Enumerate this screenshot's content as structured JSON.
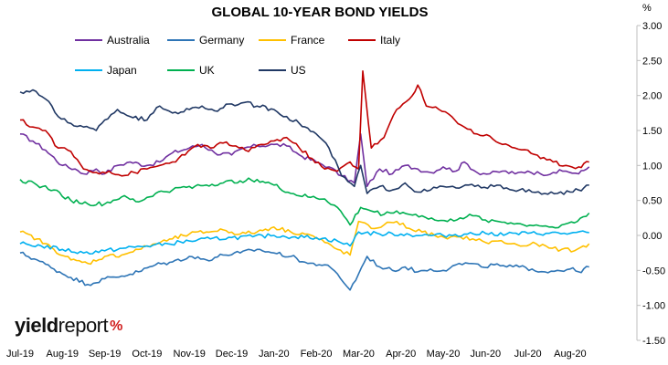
{
  "chart_data": {
    "type": "line",
    "title": "GLOBAL 10-YEAR BOND YIELDS",
    "unit": "%",
    "xlabel": "",
    "ylabel": "",
    "x_tick_labels": [
      "Jul-19",
      "Aug-19",
      "Sep-19",
      "Oct-19",
      "Nov-19",
      "Dec-19",
      "Jan-20",
      "Feb-20",
      "Mar-20",
      "Apr-20",
      "May-20",
      "Jun-20",
      "Jul-20",
      "Aug-20"
    ],
    "y_ticks": [
      "3.00",
      "2.50",
      "2.00",
      "1.50",
      "1.00",
      "0.50",
      "0.00",
      "-0.50",
      "-1.00",
      "-1.50"
    ],
    "ylim": [
      -1.5,
      3.0
    ],
    "grid": false,
    "legend_position": "top",
    "series": [
      {
        "name": "Australia",
        "color": "#7030A0",
        "points": [
          [
            0,
            1.45
          ],
          [
            0.3,
            1.35
          ],
          [
            0.6,
            1.22
          ],
          [
            1.0,
            1.0
          ],
          [
            1.3,
            0.95
          ],
          [
            1.5,
            0.88
          ],
          [
            1.8,
            0.95
          ],
          [
            2.0,
            0.88
          ],
          [
            2.3,
            1.0
          ],
          [
            2.6,
            1.05
          ],
          [
            3.0,
            1.0
          ],
          [
            3.3,
            1.05
          ],
          [
            3.6,
            1.18
          ],
          [
            4.0,
            1.25
          ],
          [
            4.3,
            1.3
          ],
          [
            4.6,
            1.18
          ],
          [
            5.0,
            1.15
          ],
          [
            5.3,
            1.25
          ],
          [
            5.6,
            1.28
          ],
          [
            6.0,
            1.3
          ],
          [
            6.3,
            1.28
          ],
          [
            6.6,
            1.15
          ],
          [
            7.0,
            1.05
          ],
          [
            7.3,
            0.98
          ],
          [
            7.6,
            0.85
          ],
          [
            7.9,
            0.75
          ],
          [
            8.05,
            1.45
          ],
          [
            8.2,
            0.7
          ],
          [
            8.5,
            0.95
          ],
          [
            8.8,
            0.88
          ],
          [
            9.1,
            1.0
          ],
          [
            9.4,
            0.95
          ],
          [
            9.7,
            0.9
          ],
          [
            10.0,
            0.98
          ],
          [
            10.3,
            0.92
          ],
          [
            10.5,
            1.05
          ],
          [
            10.8,
            0.9
          ],
          [
            11.1,
            0.88
          ],
          [
            11.4,
            0.92
          ],
          [
            11.7,
            0.88
          ],
          [
            12.0,
            0.92
          ],
          [
            12.3,
            0.88
          ],
          [
            12.6,
            0.9
          ],
          [
            12.9,
            0.92
          ],
          [
            13.2,
            0.88
          ],
          [
            13.45,
            0.98
          ]
        ]
      },
      {
        "name": "Germany",
        "color": "#2E75B6",
        "points": [
          [
            0,
            -0.25
          ],
          [
            0.4,
            -0.35
          ],
          [
            0.8,
            -0.48
          ],
          [
            1.2,
            -0.6
          ],
          [
            1.6,
            -0.7
          ],
          [
            2.0,
            -0.62
          ],
          [
            2.4,
            -0.58
          ],
          [
            2.8,
            -0.52
          ],
          [
            3.2,
            -0.42
          ],
          [
            3.6,
            -0.38
          ],
          [
            4.0,
            -0.3
          ],
          [
            4.4,
            -0.35
          ],
          [
            4.8,
            -0.28
          ],
          [
            5.2,
            -0.25
          ],
          [
            5.6,
            -0.2
          ],
          [
            6.0,
            -0.25
          ],
          [
            6.4,
            -0.3
          ],
          [
            6.8,
            -0.4
          ],
          [
            7.2,
            -0.42
          ],
          [
            7.5,
            -0.55
          ],
          [
            7.8,
            -0.78
          ],
          [
            8.0,
            -0.55
          ],
          [
            8.2,
            -0.3
          ],
          [
            8.5,
            -0.45
          ],
          [
            8.8,
            -0.5
          ],
          [
            9.1,
            -0.45
          ],
          [
            9.4,
            -0.52
          ],
          [
            9.7,
            -0.48
          ],
          [
            10.0,
            -0.5
          ],
          [
            10.3,
            -0.42
          ],
          [
            10.6,
            -0.4
          ],
          [
            10.9,
            -0.45
          ],
          [
            11.2,
            -0.42
          ],
          [
            11.5,
            -0.45
          ],
          [
            11.8,
            -0.45
          ],
          [
            12.1,
            -0.48
          ],
          [
            12.4,
            -0.52
          ],
          [
            12.7,
            -0.5
          ],
          [
            13.0,
            -0.48
          ],
          [
            13.2,
            -0.52
          ],
          [
            13.45,
            -0.45
          ]
        ]
      },
      {
        "name": "France",
        "color": "#FFC000",
        "points": [
          [
            0,
            0.05
          ],
          [
            0.4,
            -0.05
          ],
          [
            0.8,
            -0.2
          ],
          [
            1.2,
            -0.35
          ],
          [
            1.6,
            -0.4
          ],
          [
            2.0,
            -0.3
          ],
          [
            2.4,
            -0.28
          ],
          [
            2.8,
            -0.2
          ],
          [
            3.2,
            -0.12
          ],
          [
            3.6,
            -0.05
          ],
          [
            4.0,
            0.02
          ],
          [
            4.4,
            0.05
          ],
          [
            4.8,
            0.08
          ],
          [
            5.2,
            0.02
          ],
          [
            5.6,
            0.05
          ],
          [
            6.0,
            0.12
          ],
          [
            6.4,
            0.05
          ],
          [
            6.8,
            0.02
          ],
          [
            7.2,
            -0.1
          ],
          [
            7.5,
            -0.2
          ],
          [
            7.8,
            -0.28
          ],
          [
            8.0,
            0.2
          ],
          [
            8.3,
            0.1
          ],
          [
            8.6,
            0.15
          ],
          [
            8.9,
            0.2
          ],
          [
            9.2,
            0.1
          ],
          [
            9.5,
            0.05
          ],
          [
            9.8,
            0.0
          ],
          [
            10.1,
            -0.05
          ],
          [
            10.4,
            -0.02
          ],
          [
            10.7,
            -0.05
          ],
          [
            11.0,
            -0.1
          ],
          [
            11.3,
            -0.08
          ],
          [
            11.6,
            -0.12
          ],
          [
            11.9,
            -0.15
          ],
          [
            12.2,
            -0.12
          ],
          [
            12.5,
            -0.18
          ],
          [
            12.8,
            -0.2
          ],
          [
            13.1,
            -0.22
          ],
          [
            13.45,
            -0.12
          ]
        ]
      },
      {
        "name": "Italy",
        "color": "#C00000",
        "points": [
          [
            0,
            1.65
          ],
          [
            0.3,
            1.55
          ],
          [
            0.6,
            1.5
          ],
          [
            0.9,
            1.25
          ],
          [
            1.2,
            1.2
          ],
          [
            1.5,
            0.95
          ],
          [
            1.8,
            0.9
          ],
          [
            2.1,
            0.92
          ],
          [
            2.4,
            0.85
          ],
          [
            2.7,
            0.9
          ],
          [
            3.0,
            0.95
          ],
          [
            3.3,
            1.0
          ],
          [
            3.6,
            1.05
          ],
          [
            3.9,
            1.15
          ],
          [
            4.2,
            1.3
          ],
          [
            4.5,
            1.25
          ],
          [
            4.8,
            1.32
          ],
          [
            5.1,
            1.28
          ],
          [
            5.4,
            1.2
          ],
          [
            5.7,
            1.3
          ],
          [
            6.0,
            1.35
          ],
          [
            6.3,
            1.4
          ],
          [
            6.6,
            1.25
          ],
          [
            6.9,
            1.1
          ],
          [
            7.2,
            0.95
          ],
          [
            7.5,
            0.92
          ],
          [
            7.8,
            1.05
          ],
          [
            8.0,
            0.95
          ],
          [
            8.1,
            2.35
          ],
          [
            8.3,
            1.25
          ],
          [
            8.6,
            1.4
          ],
          [
            8.9,
            1.8
          ],
          [
            9.2,
            1.95
          ],
          [
            9.4,
            2.15
          ],
          [
            9.6,
            1.85
          ],
          [
            9.9,
            1.8
          ],
          [
            10.2,
            1.7
          ],
          [
            10.5,
            1.55
          ],
          [
            10.8,
            1.45
          ],
          [
            11.1,
            1.42
          ],
          [
            11.4,
            1.3
          ],
          [
            11.7,
            1.25
          ],
          [
            12.0,
            1.22
          ],
          [
            12.3,
            1.1
          ],
          [
            12.6,
            1.05
          ],
          [
            12.9,
            1.0
          ],
          [
            13.2,
            0.98
          ],
          [
            13.45,
            1.05
          ]
        ]
      },
      {
        "name": "Japan",
        "color": "#00B0F0",
        "points": [
          [
            0,
            -0.12
          ],
          [
            0.5,
            -0.15
          ],
          [
            1.0,
            -0.2
          ],
          [
            1.5,
            -0.25
          ],
          [
            2.0,
            -0.22
          ],
          [
            2.5,
            -0.18
          ],
          [
            3.0,
            -0.15
          ],
          [
            3.5,
            -0.12
          ],
          [
            4.0,
            -0.08
          ],
          [
            4.5,
            -0.05
          ],
          [
            5.0,
            -0.03
          ],
          [
            5.5,
            -0.02
          ],
          [
            6.0,
            0.0
          ],
          [
            6.5,
            -0.02
          ],
          [
            7.0,
            -0.03
          ],
          [
            7.5,
            -0.08
          ],
          [
            7.8,
            -0.15
          ],
          [
            8.0,
            0.05
          ],
          [
            8.5,
            0.02
          ],
          [
            9.0,
            0.02
          ],
          [
            9.5,
            0.0
          ],
          [
            10.0,
            0.0
          ],
          [
            10.5,
            0.02
          ],
          [
            11.0,
            0.03
          ],
          [
            11.5,
            0.02
          ],
          [
            12.0,
            0.03
          ],
          [
            12.5,
            0.03
          ],
          [
            13.0,
            0.03
          ],
          [
            13.45,
            0.04
          ]
        ]
      },
      {
        "name": "UK",
        "color": "#00B050",
        "points": [
          [
            0,
            0.8
          ],
          [
            0.4,
            0.72
          ],
          [
            0.8,
            0.65
          ],
          [
            1.2,
            0.5
          ],
          [
            1.6,
            0.45
          ],
          [
            2.0,
            0.45
          ],
          [
            2.4,
            0.55
          ],
          [
            2.8,
            0.48
          ],
          [
            3.2,
            0.6
          ],
          [
            3.6,
            0.65
          ],
          [
            4.0,
            0.7
          ],
          [
            4.4,
            0.72
          ],
          [
            4.8,
            0.75
          ],
          [
            5.2,
            0.78
          ],
          [
            5.6,
            0.8
          ],
          [
            6.0,
            0.72
          ],
          [
            6.4,
            0.6
          ],
          [
            6.8,
            0.55
          ],
          [
            7.2,
            0.52
          ],
          [
            7.5,
            0.4
          ],
          [
            7.8,
            0.15
          ],
          [
            8.05,
            0.4
          ],
          [
            8.3,
            0.35
          ],
          [
            8.6,
            0.3
          ],
          [
            8.9,
            0.35
          ],
          [
            9.2,
            0.3
          ],
          [
            9.5,
            0.28
          ],
          [
            9.8,
            0.22
          ],
          [
            10.1,
            0.2
          ],
          [
            10.4,
            0.25
          ],
          [
            10.7,
            0.28
          ],
          [
            11.0,
            0.22
          ],
          [
            11.3,
            0.2
          ],
          [
            11.6,
            0.18
          ],
          [
            11.9,
            0.15
          ],
          [
            12.2,
            0.15
          ],
          [
            12.5,
            0.12
          ],
          [
            12.8,
            0.15
          ],
          [
            13.1,
            0.18
          ],
          [
            13.45,
            0.32
          ]
        ]
      },
      {
        "name": "US",
        "color": "#203864",
        "points": [
          [
            0,
            2.05
          ],
          [
            0.3,
            2.08
          ],
          [
            0.6,
            1.95
          ],
          [
            0.9,
            1.7
          ],
          [
            1.2,
            1.6
          ],
          [
            1.5,
            1.55
          ],
          [
            1.8,
            1.5
          ],
          [
            2.0,
            1.65
          ],
          [
            2.3,
            1.8
          ],
          [
            2.6,
            1.7
          ],
          [
            3.0,
            1.65
          ],
          [
            3.3,
            1.85
          ],
          [
            3.6,
            1.75
          ],
          [
            4.0,
            1.8
          ],
          [
            4.3,
            1.85
          ],
          [
            4.6,
            1.78
          ],
          [
            5.0,
            1.88
          ],
          [
            5.3,
            1.9
          ],
          [
            5.6,
            1.85
          ],
          [
            6.0,
            1.8
          ],
          [
            6.3,
            1.7
          ],
          [
            6.6,
            1.6
          ],
          [
            7.0,
            1.45
          ],
          [
            7.3,
            1.25
          ],
          [
            7.6,
            0.85
          ],
          [
            7.9,
            0.7
          ],
          [
            8.05,
            1.0
          ],
          [
            8.2,
            0.6
          ],
          [
            8.5,
            0.7
          ],
          [
            8.8,
            0.65
          ],
          [
            9.1,
            0.75
          ],
          [
            9.4,
            0.62
          ],
          [
            9.7,
            0.65
          ],
          [
            10.0,
            0.7
          ],
          [
            10.3,
            0.68
          ],
          [
            10.6,
            0.72
          ],
          [
            10.9,
            0.68
          ],
          [
            11.2,
            0.7
          ],
          [
            11.5,
            0.68
          ],
          [
            11.8,
            0.65
          ],
          [
            12.1,
            0.62
          ],
          [
            12.4,
            0.6
          ],
          [
            12.7,
            0.6
          ],
          [
            13.0,
            0.62
          ],
          [
            13.2,
            0.65
          ],
          [
            13.45,
            0.72
          ]
        ]
      }
    ]
  },
  "logo": {
    "text_a": "yield",
    "text_b": "report",
    "pct": "%"
  }
}
